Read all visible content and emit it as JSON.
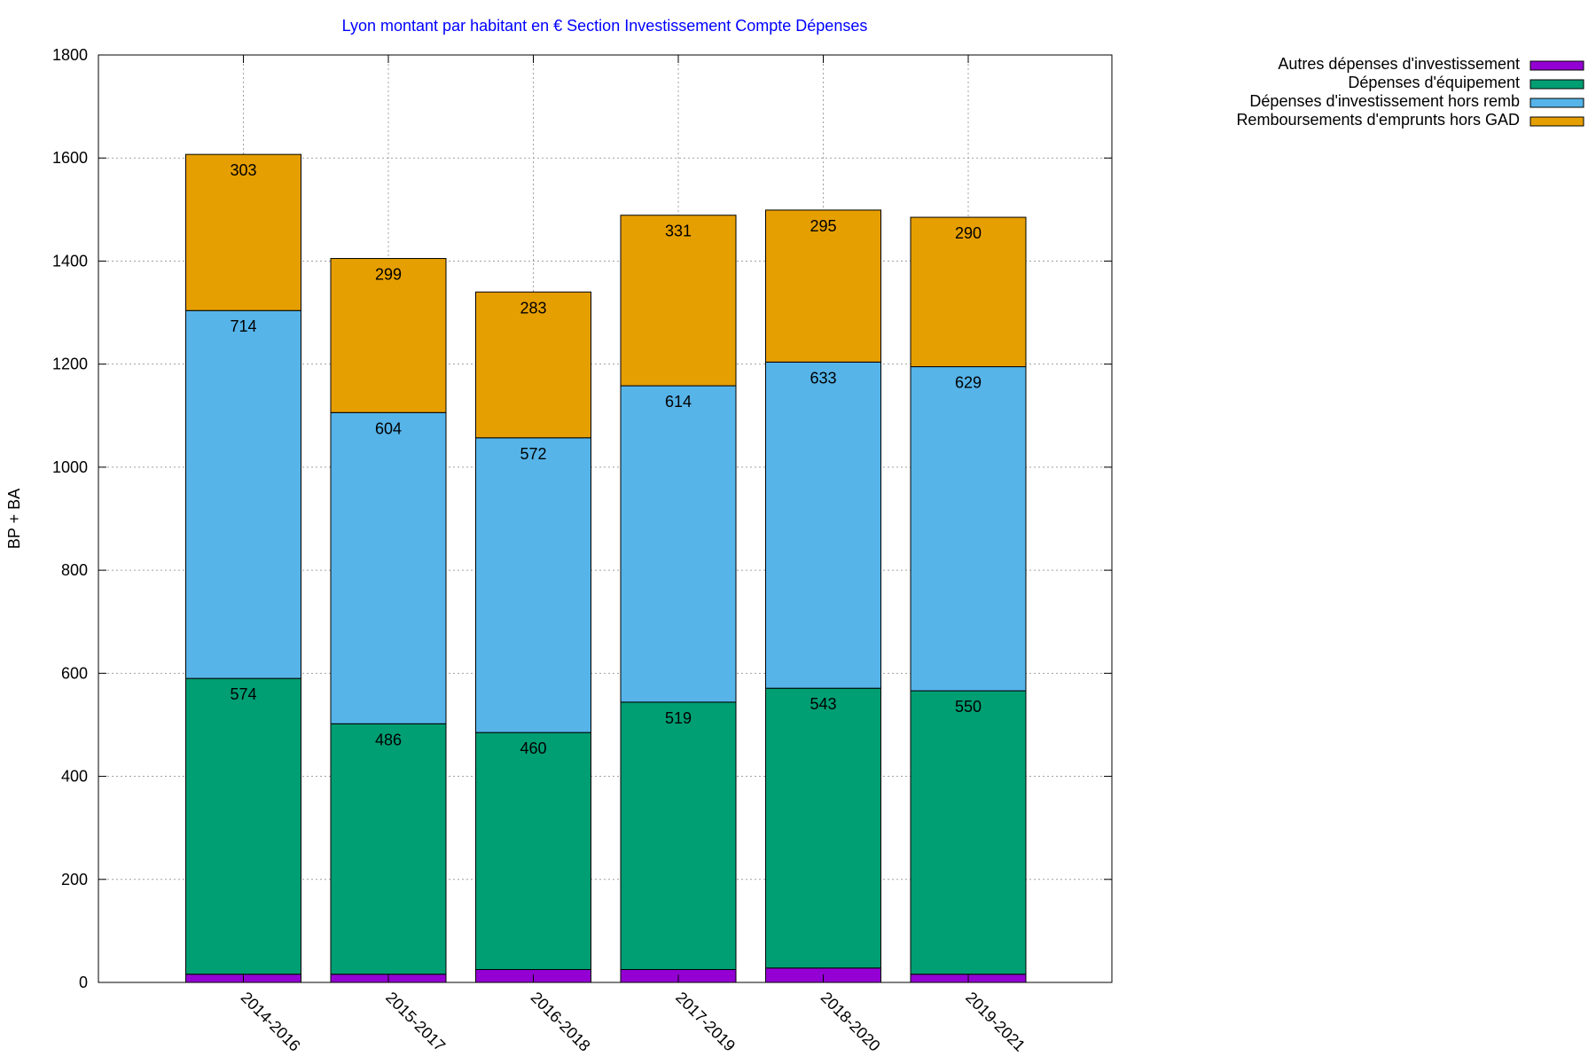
{
  "chart_data": {
    "type": "bar",
    "stacked": true,
    "title": "Lyon montant par habitant en € Section Investissement Compte Dépenses",
    "xlabel": "",
    "ylabel": "BP + BA",
    "ylim": [
      0,
      1800
    ],
    "yticks": [
      0,
      200,
      400,
      600,
      800,
      1000,
      1200,
      1400,
      1600,
      1800
    ],
    "grid": true,
    "legend_position": "top-right-outside",
    "categories": [
      "2014-2016",
      "2015-2017",
      "2016-2018",
      "2017-2019",
      "2018-2020",
      "2019-2021"
    ],
    "series": [
      {
        "name": "Autres dépenses d'investissement",
        "color": "#9400d3",
        "values": [
          16,
          16,
          25,
          25,
          28,
          16
        ],
        "labels": [
          "",
          "",
          "",
          "",
          "",
          ""
        ]
      },
      {
        "name": "Dépenses d'équipement",
        "color": "#009e73",
        "values": [
          574,
          486,
          460,
          519,
          543,
          550
        ],
        "labels": [
          "574",
          "486",
          "460",
          "519",
          "543",
          "550"
        ]
      },
      {
        "name": "Dépenses d'investissement hors remb",
        "color": "#56b4e9",
        "values": [
          714,
          604,
          572,
          614,
          633,
          629
        ],
        "labels": [
          "714",
          "604",
          "572",
          "614",
          "633",
          "629"
        ]
      },
      {
        "name": "Remboursements d'emprunts hors GAD",
        "color": "#e69f00",
        "values": [
          303,
          299,
          283,
          331,
          295,
          290
        ],
        "labels": [
          "303",
          "299",
          "283",
          "331",
          "295",
          "290"
        ]
      }
    ]
  }
}
